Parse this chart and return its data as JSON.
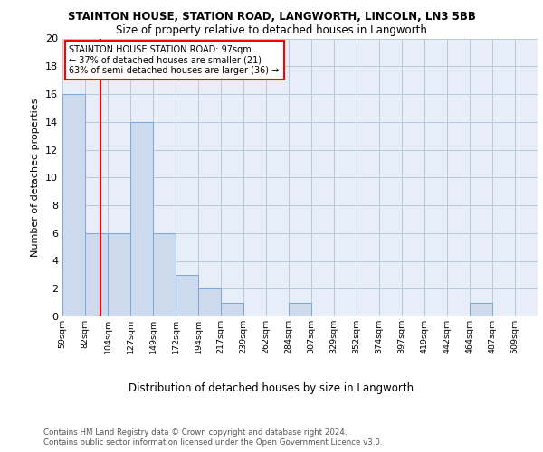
{
  "title1": "STAINTON HOUSE, STATION ROAD, LANGWORTH, LINCOLN, LN3 5BB",
  "title2": "Size of property relative to detached houses in Langworth",
  "xlabel": "Distribution of detached houses by size in Langworth",
  "ylabel": "Number of detached properties",
  "bin_labels": [
    "59sqm",
    "82sqm",
    "104sqm",
    "127sqm",
    "149sqm",
    "172sqm",
    "194sqm",
    "217sqm",
    "239sqm",
    "262sqm",
    "284sqm",
    "307sqm",
    "329sqm",
    "352sqm",
    "374sqm",
    "397sqm",
    "419sqm",
    "442sqm",
    "464sqm",
    "487sqm",
    "509sqm"
  ],
  "bar_values": [
    16,
    6,
    6,
    14,
    6,
    3,
    2,
    1,
    0,
    0,
    1,
    0,
    0,
    0,
    0,
    0,
    0,
    0,
    1,
    0,
    0
  ],
  "bar_color": "#cdd9ed",
  "bar_edge_color": "#7ba7d4",
  "grid_color": "#b8c8dc",
  "background_color": "#e8eef8",
  "annotation_text": "STAINTON HOUSE STATION ROAD: 97sqm\n← 37% of detached houses are smaller (21)\n63% of semi-detached houses are larger (36) →",
  "annotation_box_color": "white",
  "annotation_box_edge": "red",
  "ylim": [
    0,
    20
  ],
  "yticks": [
    0,
    2,
    4,
    6,
    8,
    10,
    12,
    14,
    16,
    18,
    20
  ],
  "footer_line1": "Contains HM Land Registry data © Crown copyright and database right 2024.",
  "footer_line2": "Contains public sector information licensed under the Open Government Licence v3.0."
}
